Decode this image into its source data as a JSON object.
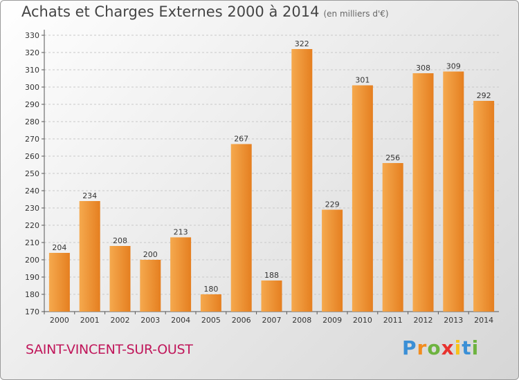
{
  "title": "Achats et Charges Externes 2000 à 2014",
  "unit": "(en milliers d'€)",
  "commune": "SAINT-VINCENT-SUR-OUST",
  "logo": {
    "letters": [
      "P",
      "r",
      "o",
      "x",
      "i",
      "t",
      "i"
    ],
    "colors": [
      "#3a8fd6",
      "#f28c1e",
      "#6db33f",
      "#e8322e",
      "#f7c21a",
      "#3a8fd6",
      "#6db33f"
    ]
  },
  "colors": {
    "bar": "#f09a3e",
    "bar_dark": "#d9741a",
    "grid": "#c8c8c8"
  },
  "chart_data": {
    "type": "bar",
    "title": "Achats et Charges Externes 2000 à 2014",
    "subtitle": "(en milliers d'€)",
    "categories": [
      "2000",
      "2001",
      "2002",
      "2003",
      "2004",
      "2005",
      "2006",
      "2007",
      "2008",
      "2009",
      "2010",
      "2011",
      "2012",
      "2013",
      "2014"
    ],
    "values": [
      204,
      234,
      208,
      200,
      213,
      180,
      267,
      188,
      322,
      229,
      301,
      256,
      308,
      309,
      292
    ],
    "ylim": [
      170,
      330
    ],
    "yticks": [
      170,
      180,
      190,
      200,
      210,
      220,
      230,
      240,
      250,
      260,
      270,
      280,
      290,
      300,
      310,
      320,
      330
    ],
    "grid": true,
    "xlabel": "",
    "ylabel": ""
  }
}
